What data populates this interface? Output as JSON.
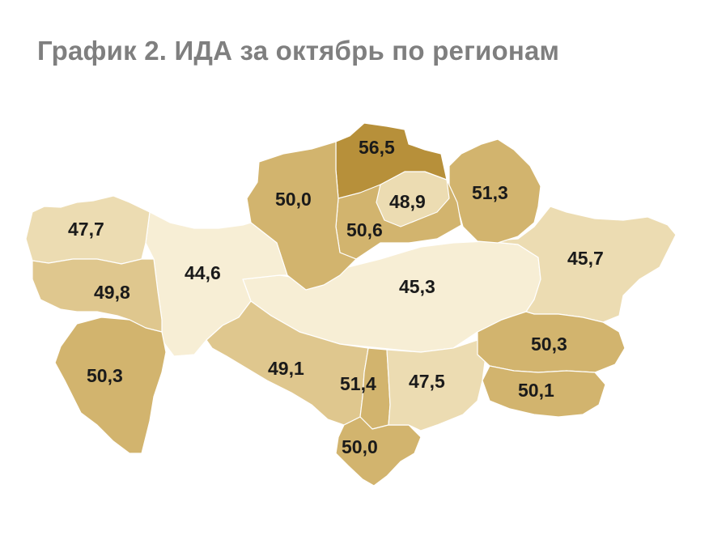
{
  "title": "График 2. ИДА за октябрь по регионам",
  "colors": {
    "darkest": "#b7903a",
    "dark": "#d2b46e",
    "medium": "#dfc78e",
    "light": "#ecdcb2",
    "lightest": "#f7eed5"
  },
  "regions": [
    {
      "id": "north-kazakhstan",
      "value": "56,5",
      "shade": "darkest"
    },
    {
      "id": "kostanay",
      "value": "50,0",
      "shade": "dark"
    },
    {
      "id": "akmola",
      "value": "50,6",
      "shade": "dark"
    },
    {
      "id": "astana",
      "value": "48,9",
      "shade": "light"
    },
    {
      "id": "pavlodar",
      "value": "51,3",
      "shade": "dark"
    },
    {
      "id": "west-kazakhstan",
      "value": "47,7",
      "shade": "light"
    },
    {
      "id": "aktobe",
      "value": "44,6",
      "shade": "lightest"
    },
    {
      "id": "atyrau",
      "value": "49,8",
      "shade": "medium"
    },
    {
      "id": "mangystau",
      "value": "50,3",
      "shade": "dark"
    },
    {
      "id": "karaganda",
      "value": "45,3",
      "shade": "lightest"
    },
    {
      "id": "east-kazakhstan",
      "value": "45,7",
      "shade": "light"
    },
    {
      "id": "almaty-region",
      "value": "50,3",
      "shade": "dark"
    },
    {
      "id": "almaty-city",
      "value": "50,1",
      "shade": "dark"
    },
    {
      "id": "kyzylorda",
      "value": "49,1",
      "shade": "medium"
    },
    {
      "id": "south-kazakhstan",
      "value": "51,4",
      "shade": "dark"
    },
    {
      "id": "zhambyl",
      "value": "47,5",
      "shade": "light"
    },
    {
      "id": "shymkent",
      "value": "50,0",
      "shade": "dark"
    }
  ]
}
